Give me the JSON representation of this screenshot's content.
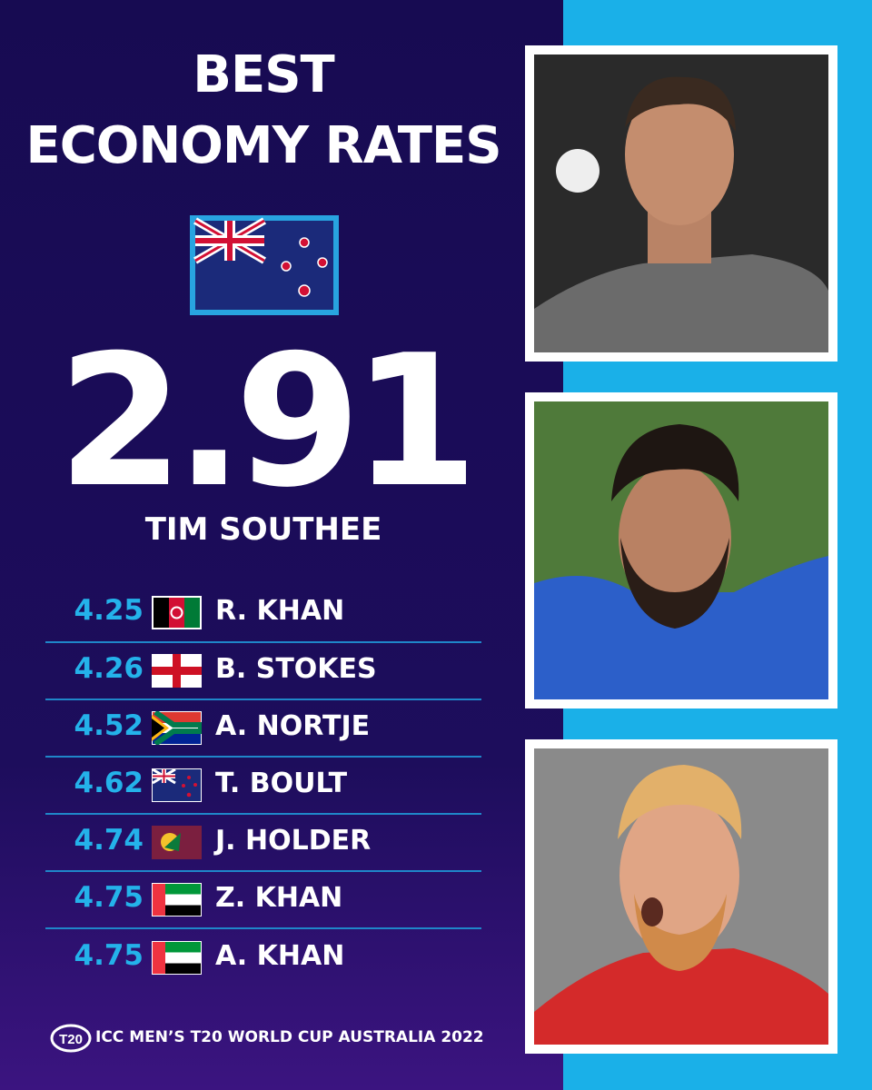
{
  "header": {
    "title_lines": [
      "BEST",
      "ECONOMY RATES"
    ]
  },
  "featured": {
    "value": "2.91",
    "name": "TIM SOUTHEE"
  },
  "rows": [
    {
      "value": "4.25",
      "name": "R. KHAN"
    },
    {
      "value": "4.26",
      "name": "B. STOKES"
    },
    {
      "value": "4.52",
      "name": "A. NORTJE"
    },
    {
      "value": "4.62",
      "name": "T. BOULT"
    },
    {
      "value": "4.74",
      "name": "J. HOLDER"
    },
    {
      "value": "4.75",
      "name": "Z. KHAN"
    },
    {
      "value": "4.75",
      "name": "A. KHAN"
    }
  ],
  "footer": {
    "text": "ICC MEN’S T20 WORLD CUP AUSTRALIA 2022"
  }
}
